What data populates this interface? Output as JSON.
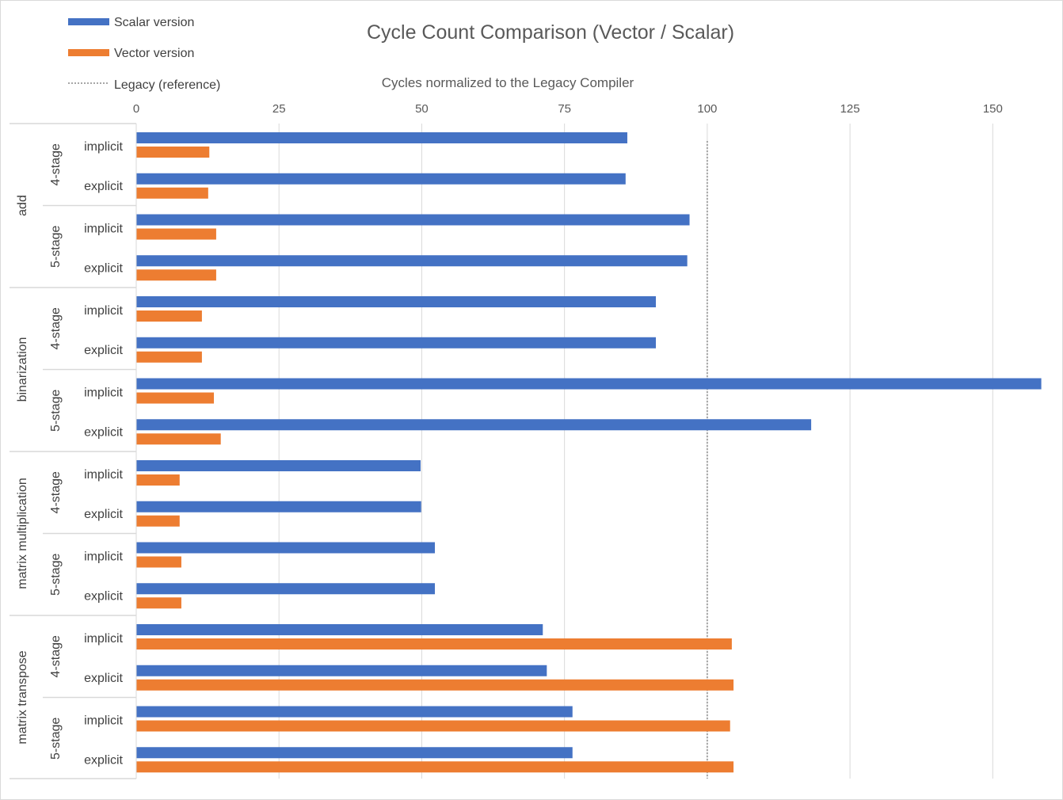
{
  "chart_data": {
    "type": "bar",
    "orientation": "horizontal",
    "title": "Cycle Count Comparison (Vector / Scalar)",
    "xlabel": "Cycles normalized to the Legacy Compiler",
    "xlim": [
      0,
      158
    ],
    "xticks": [
      0,
      25,
      50,
      75,
      100,
      125,
      150
    ],
    "grid": true,
    "legend_position": "top-left",
    "reference_line": {
      "name": "Legacy (reference)",
      "value": 100
    },
    "groups": [
      "add",
      "binarization",
      "matrix multiplication",
      "matrix transpose"
    ],
    "stages": [
      "4-stage",
      "5-stage"
    ],
    "variants": [
      "implicit",
      "explicit"
    ],
    "series": [
      {
        "name": "Scalar version",
        "color": "#4472c4",
        "values": [
          86,
          85.7,
          96.9,
          96.5,
          91,
          91,
          158.5,
          118.2,
          49.8,
          49.9,
          52.3,
          52.3,
          71.2,
          71.9,
          76.4,
          76.4
        ]
      },
      {
        "name": "Vector version",
        "color": "#ed7d31",
        "values": [
          12.8,
          12.6,
          14,
          14,
          11.5,
          11.5,
          13.6,
          14.8,
          7.6,
          7.6,
          7.9,
          7.9,
          104.3,
          104.6,
          104,
          104.6
        ]
      }
    ]
  },
  "colors": {
    "scalar": "#4472c4",
    "vector": "#ed7d31",
    "gridline": "#d9d9d9",
    "reference": "#a6a6a6"
  }
}
